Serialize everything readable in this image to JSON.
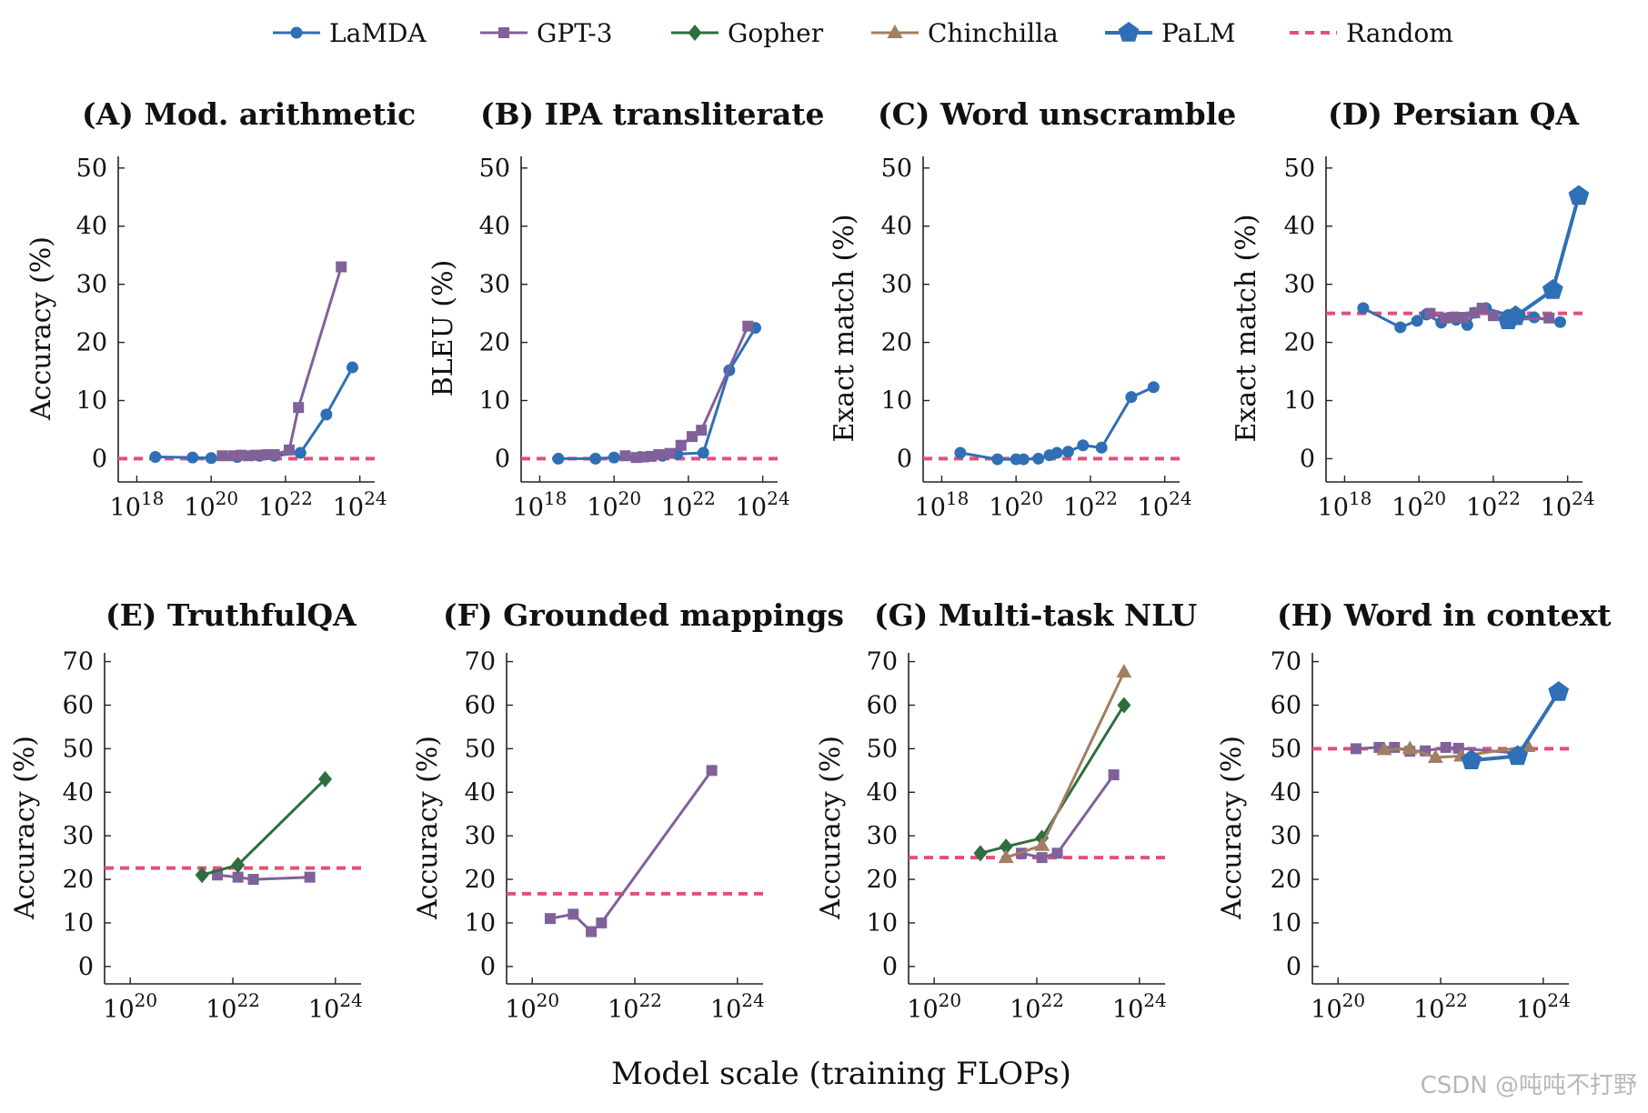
{
  "figure": {
    "xlabel": "Model scale (training FLOPs)",
    "watermark": "CSDN @吨吨不打野"
  },
  "legend": [
    {
      "name": "LaMDA",
      "color": "#2f6fb5",
      "marker": "circle",
      "icon": "circle-marker-icon"
    },
    {
      "name": "GPT-3",
      "color": "#80619a",
      "marker": "square",
      "icon": "square-marker-icon"
    },
    {
      "name": "Gopher",
      "color": "#2e6e3e",
      "marker": "diamond",
      "icon": "diamond-marker-icon"
    },
    {
      "name": "Chinchilla",
      "color": "#a17f62",
      "marker": "triangle",
      "icon": "triangle-marker-icon"
    },
    {
      "name": "PaLM",
      "color": "#2f6fb5",
      "marker": "pentagon",
      "icon": "pentagon-marker-icon"
    },
    {
      "name": "Random",
      "color": "#e2507a",
      "marker": "dashed",
      "icon": "dashed-line-icon"
    }
  ],
  "chart_data": [
    {
      "type": "line",
      "title": "(A) Mod. arithmetic",
      "ylabel": "Accuracy (%)",
      "xscale": "log10",
      "xlim": [
        17.5,
        24.4
      ],
      "ylim": [
        -4,
        52
      ],
      "yticks": [
        0,
        10,
        20,
        30,
        40,
        50
      ],
      "xticks": [
        18,
        20,
        22,
        24
      ],
      "random": 0,
      "series": [
        {
          "name": "LaMDA",
          "points": [
            [
              18.5,
              0.3
            ],
            [
              19.5,
              0.2
            ],
            [
              20.0,
              0.1
            ],
            [
              20.7,
              0.3
            ],
            [
              21.3,
              0.5
            ],
            [
              21.7,
              0.5
            ],
            [
              22.4,
              1.0
            ],
            [
              23.1,
              7.6
            ],
            [
              23.8,
              15.7
            ]
          ]
        },
        {
          "name": "GPT-3",
          "points": [
            [
              20.3,
              0.5
            ],
            [
              20.6,
              0.5
            ],
            [
              20.8,
              0.6
            ],
            [
              21.0,
              0.5
            ],
            [
              21.2,
              0.6
            ],
            [
              21.5,
              0.7
            ],
            [
              21.7,
              0.7
            ],
            [
              22.1,
              1.5
            ],
            [
              22.35,
              8.8
            ],
            [
              23.5,
              33.0
            ]
          ]
        }
      ]
    },
    {
      "type": "line",
      "title": "(B) IPA transliterate",
      "ylabel": "BLEU (%)",
      "xscale": "log10",
      "xlim": [
        17.5,
        24.4
      ],
      "ylim": [
        -4,
        52
      ],
      "yticks": [
        0,
        10,
        20,
        30,
        40,
        50
      ],
      "xticks": [
        18,
        20,
        22,
        24
      ],
      "random": 0,
      "series": [
        {
          "name": "LaMDA",
          "points": [
            [
              18.5,
              0.0
            ],
            [
              19.5,
              0.0
            ],
            [
              20.0,
              0.2
            ],
            [
              20.7,
              0.3
            ],
            [
              21.3,
              0.5
            ],
            [
              21.7,
              0.8
            ],
            [
              22.4,
              1.0
            ],
            [
              23.1,
              15.2
            ],
            [
              23.8,
              22.5
            ]
          ]
        },
        {
          "name": "GPT-3",
          "points": [
            [
              20.3,
              0.5
            ],
            [
              20.6,
              0.2
            ],
            [
              20.8,
              0.3
            ],
            [
              21.0,
              0.4
            ],
            [
              21.2,
              0.7
            ],
            [
              21.5,
              0.9
            ],
            [
              21.8,
              2.3
            ],
            [
              22.1,
              3.8
            ],
            [
              22.35,
              4.9
            ],
            [
              23.6,
              22.8
            ]
          ]
        }
      ]
    },
    {
      "type": "line",
      "title": "(C) Word unscramble",
      "ylabel": "Exact match (%)",
      "xscale": "log10",
      "xlim": [
        17.5,
        24.4
      ],
      "ylim": [
        -4,
        52
      ],
      "yticks": [
        0,
        10,
        20,
        30,
        40,
        50
      ],
      "xticks": [
        18,
        20,
        22,
        24
      ],
      "random": 0,
      "series": [
        {
          "name": "LaMDA",
          "points": [
            [
              18.5,
              1.0
            ],
            [
              19.5,
              -0.1
            ],
            [
              20.0,
              -0.1
            ],
            [
              20.2,
              -0.1
            ],
            [
              20.6,
              0.0
            ],
            [
              20.9,
              0.6
            ],
            [
              21.1,
              1.0
            ],
            [
              21.4,
              1.2
            ],
            [
              21.8,
              2.3
            ],
            [
              22.3,
              1.9
            ],
            [
              23.1,
              10.6
            ],
            [
              23.7,
              12.3
            ]
          ]
        }
      ]
    },
    {
      "type": "line",
      "title": "(D) Persian QA",
      "ylabel": "Exact match (%)",
      "xscale": "log10",
      "xlim": [
        17.5,
        24.4
      ],
      "ylim": [
        -4,
        52
      ],
      "yticks": [
        0,
        10,
        20,
        30,
        40,
        50
      ],
      "xticks": [
        18,
        20,
        22,
        24
      ],
      "random": 25,
      "series": [
        {
          "name": "LaMDA",
          "points": [
            [
              18.5,
              25.9
            ],
            [
              19.5,
              22.6
            ],
            [
              19.95,
              23.7
            ],
            [
              20.2,
              24.8
            ],
            [
              20.6,
              23.4
            ],
            [
              21.0,
              23.9
            ],
            [
              21.3,
              23.0
            ],
            [
              21.5,
              25.1
            ],
            [
              21.8,
              25.9
            ],
            [
              22.4,
              24.7
            ],
            [
              23.1,
              24.3
            ],
            [
              23.8,
              23.5
            ]
          ]
        },
        {
          "name": "GPT-3",
          "points": [
            [
              20.3,
              25.0
            ],
            [
              20.7,
              24.2
            ],
            [
              20.9,
              24.3
            ],
            [
              21.2,
              24.3
            ],
            [
              21.5,
              25.1
            ],
            [
              21.7,
              25.9
            ],
            [
              22.0,
              24.6
            ],
            [
              22.35,
              23.9
            ],
            [
              23.5,
              24.2
            ]
          ]
        },
        {
          "name": "PaLM",
          "points": [
            [
              22.4,
              23.8
            ],
            [
              22.6,
              24.5
            ],
            [
              23.6,
              29.0
            ],
            [
              24.3,
              45.2
            ]
          ]
        }
      ]
    },
    {
      "type": "line",
      "title": "(E) TruthfulQA",
      "ylabel": "Accuracy (%)",
      "xscale": "log10",
      "xlim": [
        19.5,
        24.5
      ],
      "ylim": [
        -4,
        72
      ],
      "yticks": [
        0,
        10,
        20,
        30,
        40,
        50,
        60,
        70
      ],
      "xticks": [
        20,
        22,
        24
      ],
      "random": 22.6,
      "series": [
        {
          "name": "GPT-3",
          "points": [
            [
              21.7,
              21.0
            ],
            [
              22.1,
              20.5
            ],
            [
              22.4,
              20.0
            ],
            [
              23.5,
              20.5
            ]
          ]
        },
        {
          "name": "Gopher",
          "points": [
            [
              21.4,
              21.0
            ],
            [
              22.1,
              23.3
            ],
            [
              23.8,
              43.0
            ]
          ]
        }
      ]
    },
    {
      "type": "line",
      "title": "(F) Grounded mappings",
      "ylabel": "Accuracy (%)",
      "xscale": "log10",
      "xlim": [
        19.5,
        24.5
      ],
      "ylim": [
        -4,
        72
      ],
      "yticks": [
        0,
        10,
        20,
        30,
        40,
        50,
        60,
        70
      ],
      "xticks": [
        20,
        22,
        24
      ],
      "random": 16.7,
      "series": [
        {
          "name": "GPT-3",
          "points": [
            [
              20.35,
              11.0
            ],
            [
              20.8,
              12.0
            ],
            [
              21.15,
              8.0
            ],
            [
              21.35,
              10.0
            ],
            [
              23.5,
              45.0
            ]
          ]
        }
      ]
    },
    {
      "type": "line",
      "title": "(G) Multi-task NLU",
      "ylabel": "Accuracy (%)",
      "xscale": "log10",
      "xlim": [
        19.5,
        24.5
      ],
      "ylim": [
        -4,
        72
      ],
      "yticks": [
        0,
        10,
        20,
        30,
        40,
        50,
        60,
        70
      ],
      "xticks": [
        20,
        22,
        24
      ],
      "random": 25,
      "series": [
        {
          "name": "GPT-3",
          "points": [
            [
              21.7,
              26.0
            ],
            [
              22.1,
              25.0
            ],
            [
              22.4,
              26.0
            ],
            [
              23.5,
              44.0
            ]
          ]
        },
        {
          "name": "Gopher",
          "points": [
            [
              20.9,
              26.0
            ],
            [
              21.4,
              27.5
            ],
            [
              22.1,
              29.5
            ],
            [
              23.7,
              60.0
            ]
          ]
        },
        {
          "name": "Chinchilla",
          "points": [
            [
              21.4,
              25.0
            ],
            [
              22.1,
              27.8
            ],
            [
              23.7,
              67.6
            ]
          ]
        }
      ]
    },
    {
      "type": "line",
      "title": "(H) Word in context",
      "ylabel": "Accuracy (%)",
      "xscale": "log10",
      "xlim": [
        19.5,
        24.5
      ],
      "ylim": [
        -4,
        72
      ],
      "yticks": [
        0,
        10,
        20,
        30,
        40,
        50,
        60,
        70
      ],
      "xticks": [
        20,
        22,
        24
      ],
      "random": 50,
      "series": [
        {
          "name": "GPT-3",
          "points": [
            [
              20.35,
              50.0
            ],
            [
              20.8,
              50.3
            ],
            [
              21.1,
              50.3
            ],
            [
              21.4,
              49.4
            ],
            [
              21.7,
              49.5
            ],
            [
              22.1,
              50.3
            ],
            [
              22.35,
              50.1
            ],
            [
              23.5,
              49.0
            ]
          ]
        },
        {
          "name": "Chinchilla",
          "points": [
            [
              20.9,
              49.8
            ],
            [
              21.4,
              50.0
            ],
            [
              21.9,
              48.0
            ],
            [
              22.4,
              48.3
            ],
            [
              23.7,
              50.5
            ]
          ]
        },
        {
          "name": "PaLM",
          "points": [
            [
              22.6,
              47.3
            ],
            [
              23.5,
              48.3
            ],
            [
              24.3,
              63.0
            ]
          ]
        }
      ]
    }
  ]
}
